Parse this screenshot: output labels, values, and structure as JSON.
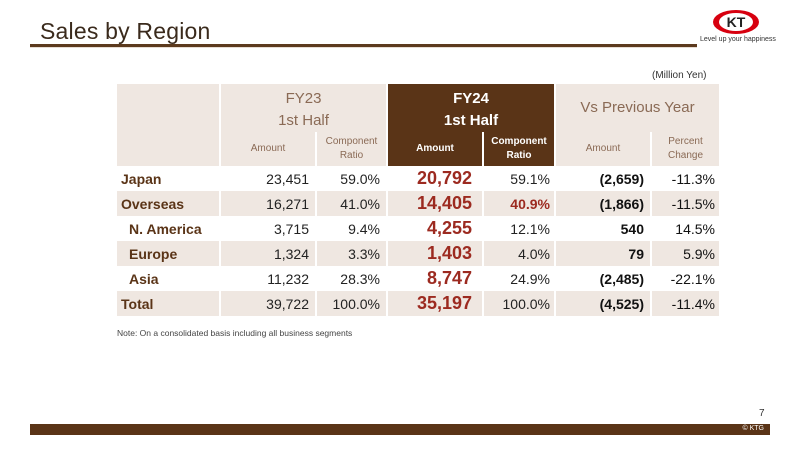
{
  "slide": {
    "title": "Sales by Region",
    "tagline": "Level up your happiness",
    "logo_text": "KT",
    "unit": "(Million Yen)",
    "note": "Note: On a consolidated basis including all business segments",
    "page_number": "7",
    "copyright": "© KTG",
    "colors": {
      "brand_brown": "#5a3417",
      "highlight_red": "#9c2a20",
      "shade": "#efe7e1",
      "logo_red": "#d7000f"
    }
  },
  "table": {
    "fy23_line1": "FY23",
    "fy23_line2": "1st Half",
    "fy24_line1": "FY24",
    "fy24_line2": "1st Half",
    "vs_label": "Vs Previous Year",
    "amount": "Amount",
    "component_1": "Component",
    "component_2": "Ratio",
    "percent_1": "Percent",
    "percent_2": "Change",
    "rows": [
      {
        "label": "Japan",
        "fy23_amount": "23,451",
        "fy23_ratio": "59.0%",
        "fy24_amount": "20,792",
        "fy24_ratio": "59.1%",
        "vs_amount": "(2,659)",
        "vs_pct": "-11.3%"
      },
      {
        "label": "Overseas",
        "fy23_amount": "16,271",
        "fy23_ratio": "41.0%",
        "fy24_amount": "14,405",
        "fy24_ratio": "40.9%",
        "vs_amount": "(1,866)",
        "vs_pct": "-11.5%"
      },
      {
        "label": "N. America",
        "fy23_amount": "3,715",
        "fy23_ratio": "9.4%",
        "fy24_amount": "4,255",
        "fy24_ratio": "12.1%",
        "vs_amount": "540",
        "vs_pct": "14.5%"
      },
      {
        "label": "Europe",
        "fy23_amount": "1,324",
        "fy23_ratio": "3.3%",
        "fy24_amount": "1,403",
        "fy24_ratio": "4.0%",
        "vs_amount": "79",
        "vs_pct": "5.9%"
      },
      {
        "label": "Asia",
        "fy23_amount": "11,232",
        "fy23_ratio": "28.3%",
        "fy24_amount": "8,747",
        "fy24_ratio": "24.9%",
        "vs_amount": "(2,485)",
        "vs_pct": "-22.1%"
      },
      {
        "label": "Total",
        "fy23_amount": "39,722",
        "fy23_ratio": "100.0%",
        "fy24_amount": "35,197",
        "fy24_ratio": "100.0%",
        "vs_amount": "(4,525)",
        "vs_pct": "-11.4%"
      }
    ]
  }
}
